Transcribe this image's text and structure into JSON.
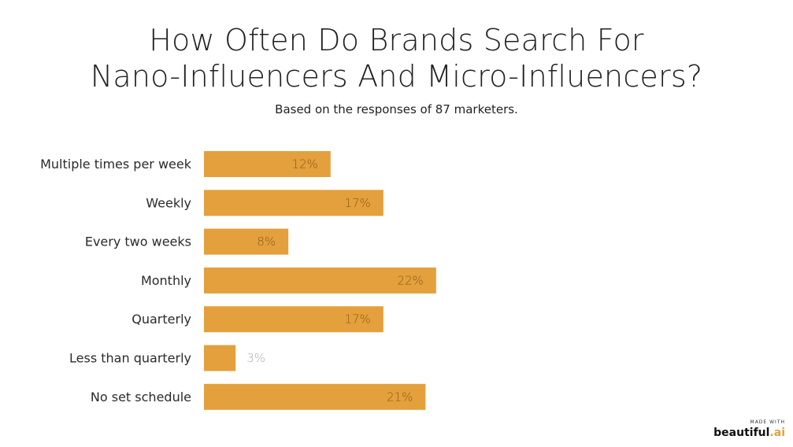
{
  "chart_data": {
    "type": "bar",
    "orientation": "horizontal",
    "title_lines": [
      "How Often Do Brands Search For",
      "Nano-Influencers And Micro-Influencers?"
    ],
    "subtitle": "Based on the responses of 87 marketers.",
    "categories": [
      "Multiple times per week",
      "Weekly",
      "Every two weeks",
      "Monthly",
      "Quarterly",
      "Less than quarterly",
      "No set schedule"
    ],
    "values": [
      12,
      17,
      8,
      22,
      17,
      3,
      21
    ],
    "value_labels": [
      "12%",
      "17%",
      "8%",
      "22%",
      "17%",
      "3%",
      "21%"
    ],
    "unit": "%",
    "bar_color": "#e3a03c",
    "label_inside_color": "#8a5a16",
    "label_outside_color": "#aaaaaa",
    "grid": false,
    "legend": "none"
  },
  "badge": {
    "small_text": "MADE WITH",
    "brand_main": "beautiful",
    "brand_dot": ".ai"
  }
}
